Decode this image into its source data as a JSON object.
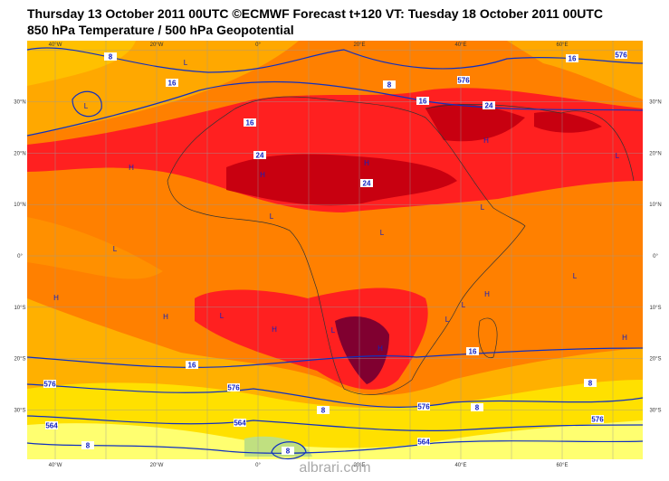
{
  "header": {
    "title": "Thursday 13 October 2011 00UTC ©ECMWF Forecast t+120 VT: Tuesday 18 October 2011 00UTC",
    "subtitle": "850 hPa Temperature / 500 hPa Geopotential"
  },
  "map": {
    "lon_labels": [
      "40°W",
      "20°W",
      "0°",
      "20°E",
      "40°E",
      "60°E"
    ],
    "lat_labels": [
      "30°N",
      "20°N",
      "10°N",
      "0°",
      "10°S",
      "20°S",
      "30°S"
    ],
    "centers": [
      "L",
      "L",
      "H",
      "H",
      "H",
      "H",
      "L",
      "L",
      "L",
      "L",
      "L",
      "L",
      "H",
      "H",
      "L",
      "H",
      "H",
      "L",
      "L",
      "H",
      "H",
      "L"
    ],
    "contour_labels": [
      "8",
      "16",
      "16",
      "24",
      "24",
      "8",
      "16",
      "576",
      "16",
      "24",
      "576",
      "16",
      "16",
      "576",
      "576",
      "564",
      "564",
      "8",
      "576",
      "8",
      "8",
      "576",
      "564",
      "8",
      "8"
    ]
  },
  "watermark": "albrari.com"
}
